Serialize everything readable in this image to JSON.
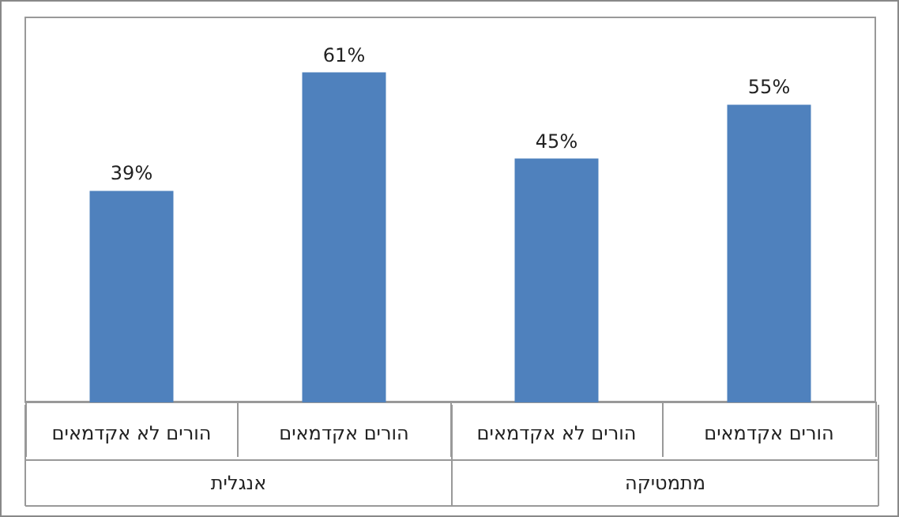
{
  "chart_data": {
    "type": "bar",
    "categories": [
      "הורים לא אקדמאים",
      "הורים אקדמאים",
      "הורים לא אקדמאים",
      "הורים אקדמאים"
    ],
    "values": [
      39,
      61,
      45,
      55
    ],
    "value_labels": [
      "39%",
      "61%",
      "45%",
      "55%"
    ],
    "color": "#4f81bd",
    "annotations": [
      "אנגלית",
      "מתמטיקה"
    ]
  }
}
